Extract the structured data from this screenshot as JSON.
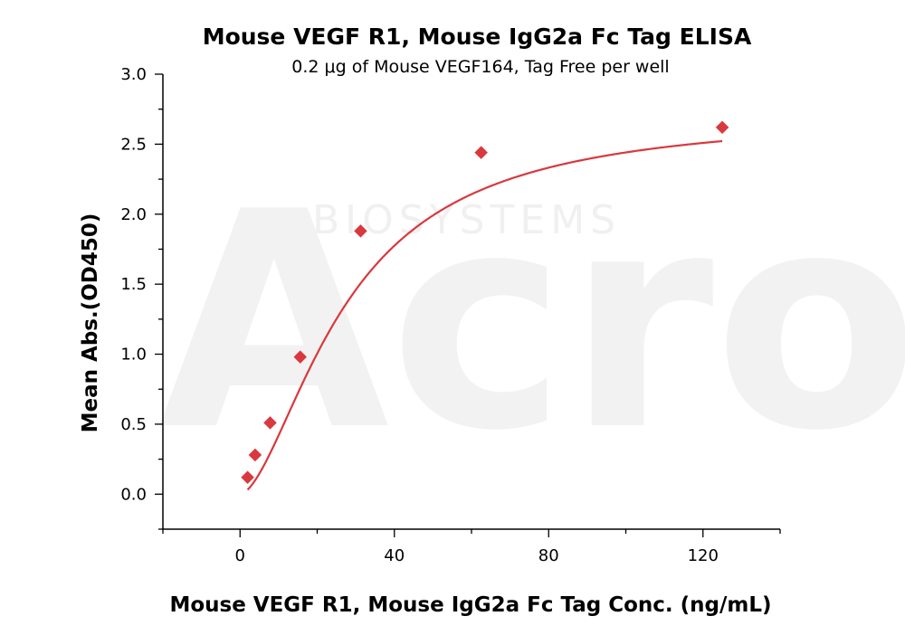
{
  "chart_data": {
    "type": "scatter",
    "title": "Mouse VEGF R1, Mouse IgG2a Fc Tag ELISA",
    "subtitle": "0.2 μg of Mouse VEGF164, Tag Free per well",
    "xlabel": "Mouse VEGF R1, Mouse IgG2a Fc Tag Conc. (ng/mL)",
    "ylabel": "Mean Abs.(OD450)",
    "xlim": [
      -20,
      140
    ],
    "ylim": [
      -0.25,
      3.0
    ],
    "x_ticks": [
      0,
      40,
      80,
      120
    ],
    "y_ticks": [
      0.0,
      0.5,
      1.0,
      1.5,
      2.0,
      2.5,
      3.0
    ],
    "y_tick_labels": [
      "0.0",
      "0.5",
      "1.0",
      "1.5",
      "2.0",
      "2.5",
      "3.0"
    ],
    "grid": false,
    "point_color": "#d9383d",
    "curve_color": "#d9383d",
    "watermark": {
      "main": "Acro",
      "sub": "BIOSYSTEMS"
    },
    "series": [
      {
        "marker": "diamond",
        "x": [
          1.95,
          3.9,
          7.8,
          15.6,
          31.25,
          62.5,
          125
        ],
        "y": [
          0.12,
          0.28,
          0.51,
          0.98,
          1.88,
          2.44,
          2.62
        ]
      }
    ],
    "fit_curve": {
      "model": "4PL",
      "bottom": 0.0,
      "top": 2.72,
      "ec50": 27.5,
      "hill": 1.68,
      "x_range": [
        1.95,
        125
      ]
    }
  }
}
